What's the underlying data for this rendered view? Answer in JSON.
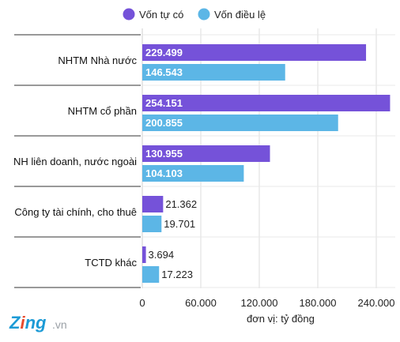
{
  "chart_data": {
    "type": "bar",
    "orientation": "horizontal",
    "categories": [
      "NHTM Nhà nước",
      "NHTM cổ phần",
      "NH liên doanh, nước ngoài",
      "Công ty tài chính, cho thuê",
      "TCTD khác"
    ],
    "series": [
      {
        "name": "Vốn tự có",
        "color": "#7552d9",
        "values": [
          229499,
          254151,
          130955,
          21362,
          3694
        ],
        "labels": [
          "229.499",
          "254.151",
          "130.955",
          "21.362",
          "3.694"
        ]
      },
      {
        "name": "Vốn điều lệ",
        "color": "#5cb6e6",
        "values": [
          146543,
          200855,
          104103,
          19701,
          17223
        ],
        "labels": [
          "146.543",
          "200.855",
          "104.103",
          "19.701",
          "17.223"
        ]
      }
    ],
    "xlim": [
      0,
      240000
    ],
    "x_ticks": [
      0,
      60000,
      120000,
      180000,
      240000
    ],
    "x_tick_labels": [
      "0",
      "60.000",
      "120.000",
      "180.000",
      "240.000"
    ],
    "grid": true,
    "legend_position": "top",
    "unit_note": "đơn vị: tỷ đồng"
  },
  "logo": {
    "name": "Zing",
    "suffix": ".vn",
    "colors": {
      "z": "#1d9bd6",
      "i": "#e84a2c",
      "ng": "#1d9bd6",
      "suffix": "#9aa0a6"
    }
  }
}
